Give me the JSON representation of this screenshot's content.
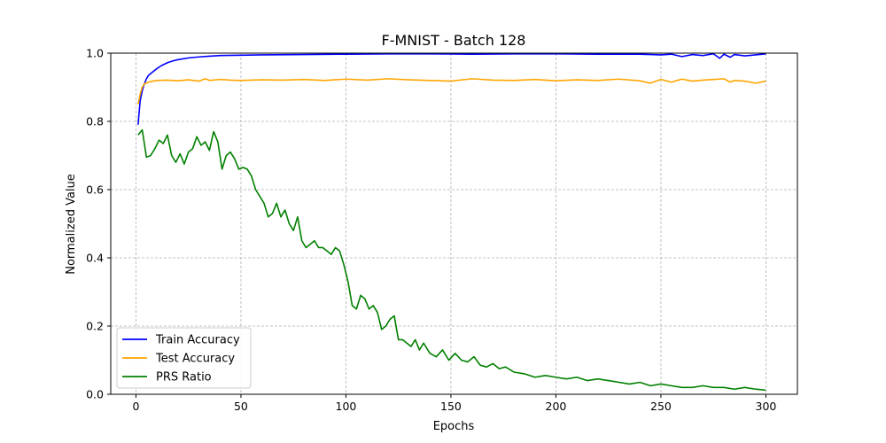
{
  "chart_data": {
    "type": "line",
    "title": "F-MNIST - Batch 128",
    "xlabel": "Epochs",
    "ylabel": "Normalized Value",
    "xlim": [
      -12,
      315
    ],
    "ylim": [
      0.0,
      1.0
    ],
    "xticks": [
      0,
      50,
      100,
      150,
      200,
      250,
      300
    ],
    "yticks": [
      0.0,
      0.2,
      0.4,
      0.6,
      0.8,
      1.0
    ],
    "xtick_labels": [
      "0",
      "50",
      "100",
      "150",
      "200",
      "250",
      "300"
    ],
    "ytick_labels": [
      "0.0",
      "0.2",
      "0.4",
      "0.6",
      "0.8",
      "1.0"
    ],
    "grid": true,
    "legend_position": "lower-left",
    "series": [
      {
        "name": "Train Accuracy",
        "color": "#0000ff",
        "x": [
          1,
          2,
          3,
          4,
          5,
          6,
          8,
          10,
          12,
          15,
          18,
          20,
          25,
          30,
          35,
          40,
          50,
          60,
          80,
          100,
          120,
          140,
          160,
          180,
          200,
          220,
          240,
          250,
          255,
          260,
          265,
          270,
          275,
          278,
          280,
          283,
          285,
          290,
          295,
          300
        ],
        "values": [
          0.79,
          0.86,
          0.89,
          0.91,
          0.925,
          0.935,
          0.945,
          0.955,
          0.963,
          0.972,
          0.978,
          0.981,
          0.986,
          0.989,
          0.991,
          0.993,
          0.994,
          0.995,
          0.996,
          0.997,
          0.998,
          0.998,
          0.997,
          0.998,
          0.998,
          0.997,
          0.997,
          0.995,
          0.997,
          0.99,
          0.996,
          0.993,
          0.998,
          0.985,
          0.997,
          0.988,
          0.996,
          0.992,
          0.995,
          0.998
        ]
      },
      {
        "name": "Test Accuracy",
        "color": "#ffa500",
        "x": [
          1,
          2,
          3,
          4,
          6,
          8,
          10,
          15,
          20,
          25,
          30,
          33,
          35,
          40,
          45,
          50,
          60,
          70,
          80,
          90,
          100,
          110,
          120,
          130,
          140,
          150,
          160,
          170,
          180,
          190,
          200,
          210,
          220,
          230,
          240,
          245,
          250,
          255,
          260,
          265,
          270,
          275,
          280,
          283,
          285,
          290,
          295,
          300
        ],
        "values": [
          0.85,
          0.88,
          0.9,
          0.91,
          0.915,
          0.918,
          0.92,
          0.921,
          0.919,
          0.922,
          0.918,
          0.925,
          0.92,
          0.923,
          0.921,
          0.92,
          0.922,
          0.921,
          0.923,
          0.92,
          0.924,
          0.921,
          0.925,
          0.922,
          0.92,
          0.918,
          0.925,
          0.921,
          0.92,
          0.923,
          0.919,
          0.922,
          0.92,
          0.924,
          0.919,
          0.912,
          0.923,
          0.915,
          0.924,
          0.918,
          0.921,
          0.923,
          0.925,
          0.915,
          0.92,
          0.918,
          0.912,
          0.918
        ]
      },
      {
        "name": "PRS Ratio",
        "color": "#008000",
        "x": [
          1,
          3,
          5,
          7,
          9,
          11,
          13,
          15,
          17,
          19,
          21,
          23,
          25,
          27,
          29,
          31,
          33,
          35,
          37,
          39,
          41,
          43,
          45,
          47,
          49,
          51,
          53,
          55,
          57,
          59,
          61,
          63,
          65,
          67,
          69,
          71,
          73,
          75,
          77,
          79,
          81,
          83,
          85,
          87,
          89,
          91,
          93,
          95,
          97,
          99,
          101,
          103,
          105,
          107,
          109,
          111,
          113,
          115,
          117,
          119,
          121,
          123,
          125,
          127,
          129,
          131,
          133,
          135,
          137,
          140,
          143,
          146,
          149,
          152,
          155,
          158,
          161,
          164,
          167,
          170,
          173,
          176,
          180,
          185,
          190,
          195,
          200,
          205,
          210,
          215,
          220,
          225,
          230,
          235,
          240,
          245,
          250,
          255,
          260,
          265,
          270,
          275,
          280,
          285,
          290,
          295,
          300
        ],
        "values": [
          0.76,
          0.775,
          0.695,
          0.7,
          0.72,
          0.745,
          0.735,
          0.76,
          0.7,
          0.68,
          0.705,
          0.675,
          0.71,
          0.72,
          0.755,
          0.73,
          0.74,
          0.715,
          0.77,
          0.74,
          0.66,
          0.7,
          0.71,
          0.69,
          0.66,
          0.665,
          0.66,
          0.64,
          0.6,
          0.58,
          0.56,
          0.52,
          0.53,
          0.56,
          0.52,
          0.54,
          0.5,
          0.48,
          0.52,
          0.45,
          0.43,
          0.44,
          0.45,
          0.43,
          0.43,
          0.42,
          0.41,
          0.43,
          0.42,
          0.38,
          0.33,
          0.26,
          0.25,
          0.29,
          0.28,
          0.25,
          0.26,
          0.24,
          0.19,
          0.2,
          0.22,
          0.23,
          0.16,
          0.16,
          0.15,
          0.14,
          0.16,
          0.13,
          0.15,
          0.12,
          0.11,
          0.13,
          0.1,
          0.12,
          0.1,
          0.095,
          0.11,
          0.085,
          0.08,
          0.09,
          0.075,
          0.08,
          0.065,
          0.06,
          0.05,
          0.055,
          0.05,
          0.045,
          0.05,
          0.04,
          0.045,
          0.04,
          0.035,
          0.03,
          0.035,
          0.025,
          0.03,
          0.025,
          0.02,
          0.02,
          0.025,
          0.02,
          0.02,
          0.015,
          0.02,
          0.015,
          0.012
        ]
      }
    ]
  }
}
